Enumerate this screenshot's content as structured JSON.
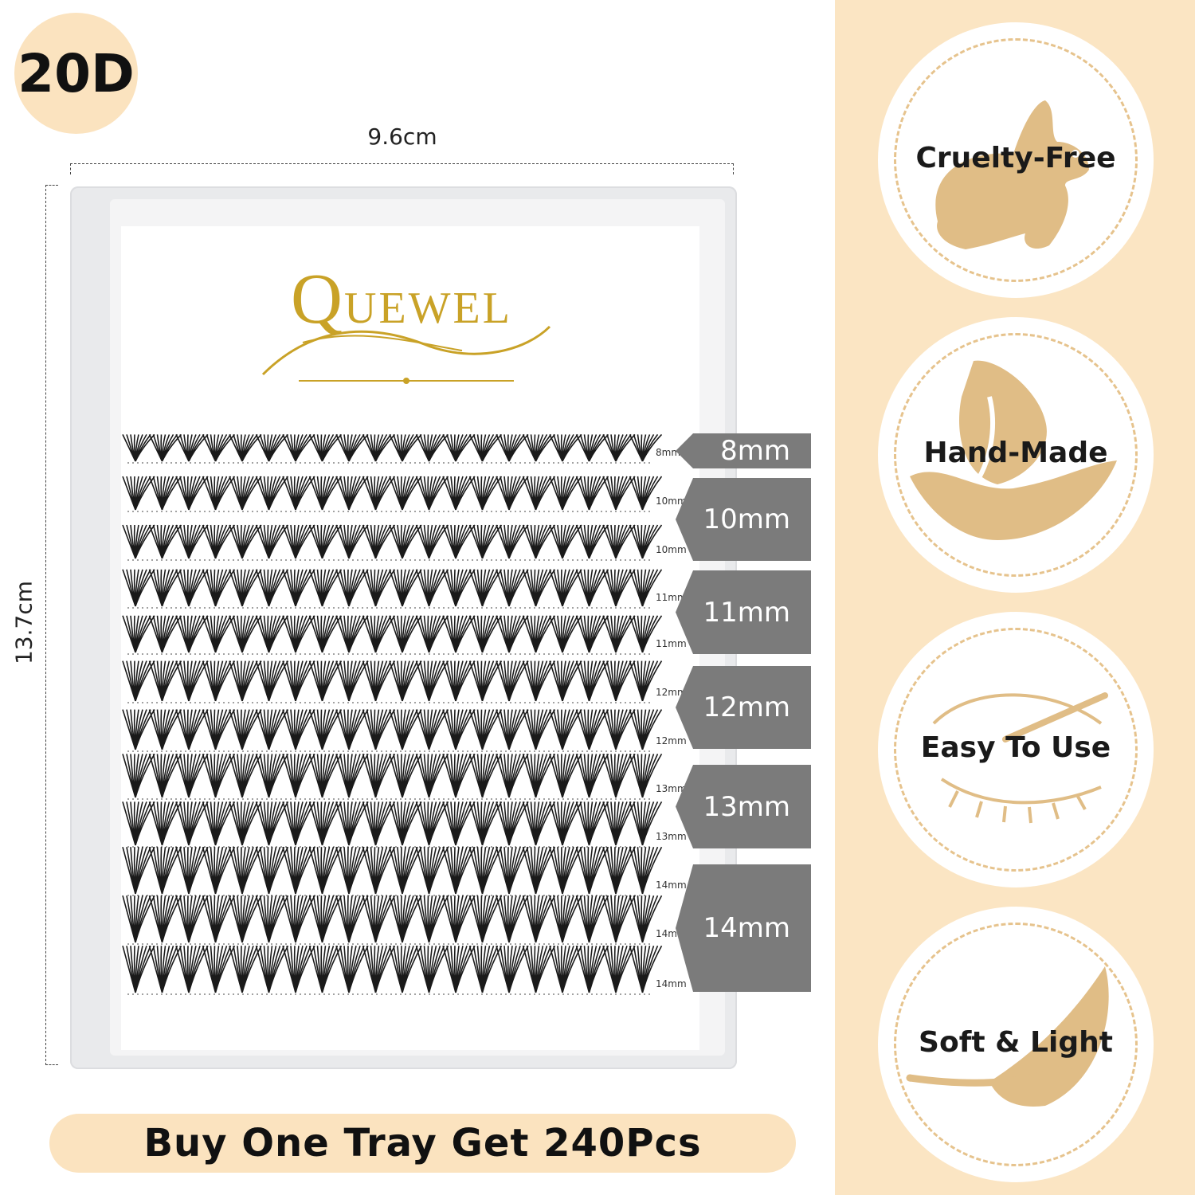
{
  "badge": "20D",
  "dimensions": {
    "width": "9.6cm",
    "height": "13.7cm"
  },
  "brand": "QUEWEL",
  "rows": [
    {
      "label": "8mm"
    },
    {
      "label": "10mm"
    },
    {
      "label": "10mm"
    },
    {
      "label": "11mm"
    },
    {
      "label": "11mm"
    },
    {
      "label": "12mm"
    },
    {
      "label": "12mm"
    },
    {
      "label": "13mm"
    },
    {
      "label": "13mm"
    },
    {
      "label": "14mm"
    },
    {
      "label": "14mm"
    },
    {
      "label": "14mm"
    }
  ],
  "tags": [
    "8mm",
    "10mm",
    "11mm",
    "12mm",
    "13mm",
    "14mm"
  ],
  "banner": "Buy One Tray Get 240Pcs",
  "features": [
    {
      "label": "Cruelty-Free",
      "icon": "rabbit-icon"
    },
    {
      "label": "Hand-Made",
      "icon": "hand-icon"
    },
    {
      "label": "Easy To Use",
      "icon": "eye-lash-icon"
    },
    {
      "label": "Soft & Light",
      "icon": "feather-icon"
    }
  ],
  "colors": {
    "accent": "#fbe3bf",
    "icon": "#e0bd86",
    "tag": "#7b7b7b",
    "gold": "#c9a227"
  }
}
